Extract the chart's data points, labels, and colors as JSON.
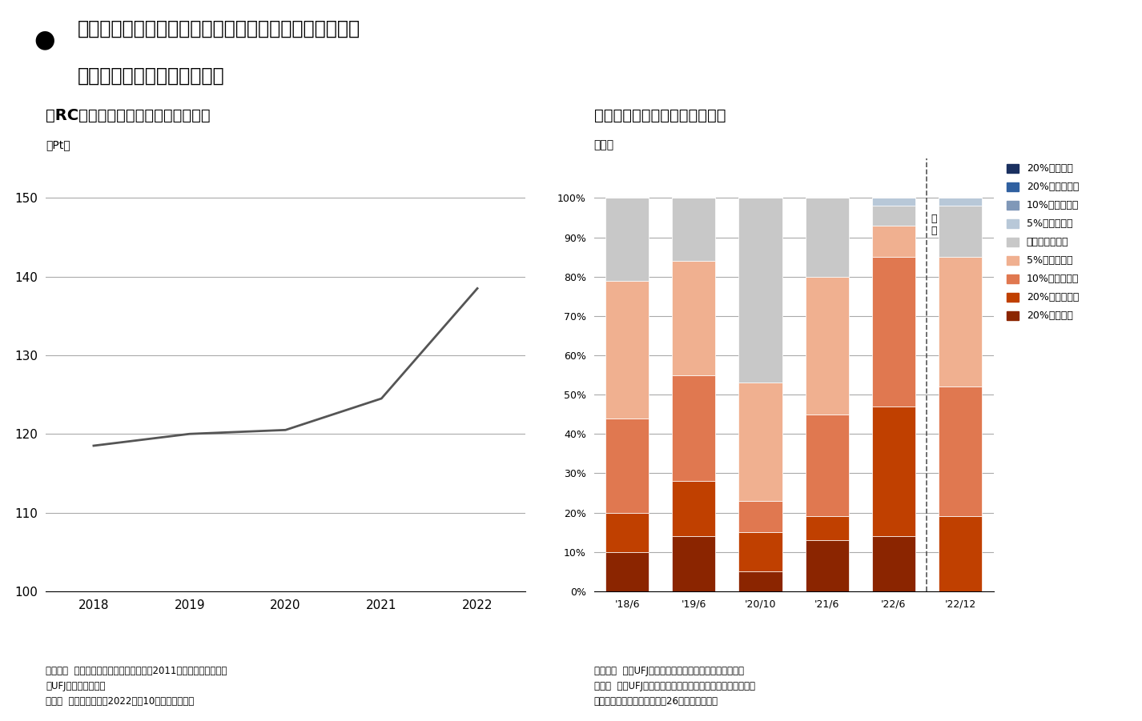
{
  "title_main": "建物の建築費用、用地取得費用ともに上昇傾向にあり、\n当面は尾を引く可能性が高い",
  "left_chart_title": "【RC造マンションの工事原価指数】",
  "left_ylabel": "（Pt）",
  "left_years": [
    2018,
    2019,
    2020,
    2021,
    2022
  ],
  "left_values": [
    118.5,
    120.0,
    120.5,
    124.5,
    138.5
  ],
  "left_ylim": [
    100,
    155
  ],
  "left_yticks": [
    100,
    110,
    120,
    130,
    140,
    150
  ],
  "left_source": "（出所）  建設物価調査会「建築費指数（2011年基準）」を基に三\n菱UFJ信託銀行が作成\n（注）  東京都の数値。2022年は10月の数値を採用",
  "right_chart_title": "【マンション用地価格の動向】",
  "right_ylabel": "（％）",
  "right_categories": [
    "'18/6",
    "'19/6",
    "'20/10",
    "'21/6",
    "'22/6",
    "'22/12"
  ],
  "bar_data": {
    "20%超の上昇": [
      10,
      14,
      5,
      13,
      14,
      0
    ],
    "20%以内の上昇": [
      10,
      14,
      10,
      6,
      33,
      19
    ],
    "10%以内の上昇": [
      24,
      27,
      8,
      26,
      38,
      33
    ],
    "5%以内の上昇": [
      35,
      29,
      30,
      35,
      8,
      33
    ],
    "ほぼ変わらない": [
      21,
      16,
      47,
      20,
      5,
      13
    ],
    "5%以内の下落": [
      0,
      0,
      0,
      0,
      2,
      2
    ],
    "10%以内の下落": [
      0,
      0,
      0,
      0,
      0,
      0
    ],
    "20%以内の下落": [
      0,
      0,
      0,
      0,
      0,
      0
    ],
    "20%超の下落": [
      0,
      0,
      0,
      0,
      0,
      0
    ]
  },
  "bar_colors": {
    "20%超の上昇": "#8B2500",
    "20%以内の上昇": "#C04000",
    "10%以内の上昇": "#E07850",
    "5%以内の上昇": "#F0B090",
    "ほぼ変わらない": "#C8C8C8",
    "5%以内の下落": "#B8C8D8",
    "10%以内の下落": "#8098B8",
    "20%以内の下落": "#3060A0",
    "20%超の下落": "#1A3060"
  },
  "right_source": "（出所）  三菱UFJ信託銀行「不動産デベロッパー調査」\n（注）  三菱UFJ信託銀行の不動産事業で取引関係のある不動\n産アセットマネジメント会社26社の回答を集計",
  "background_color": "#FFFFFF",
  "line_color": "#555555",
  "forecast_bar_idx": 5
}
